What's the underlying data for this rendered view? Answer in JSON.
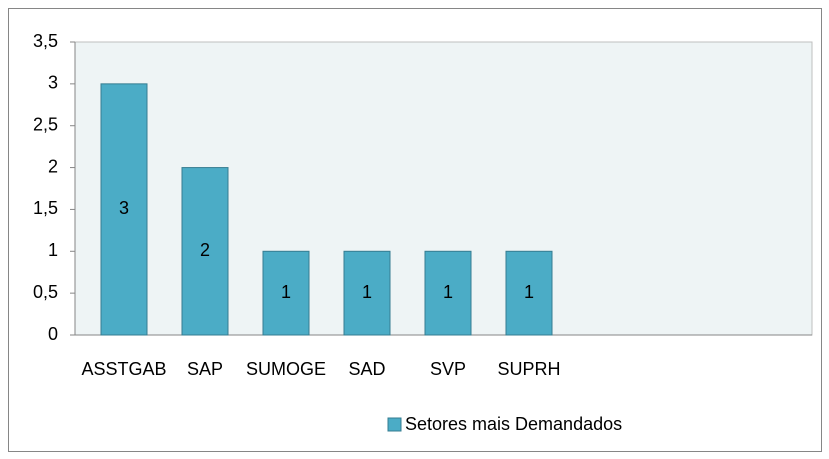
{
  "chart_data": {
    "type": "bar",
    "categories": [
      "ASSTGAB",
      "SAP",
      "SUMOGE",
      "SAD",
      "SVP",
      "SUPRH",
      null,
      null,
      null
    ],
    "series": [
      {
        "name": "Setores mais Demandados",
        "color": "#4bacc6",
        "values": [
          3,
          2,
          1,
          1,
          1,
          1,
          null,
          null,
          null
        ]
      }
    ],
    "ylim": [
      0,
      3.5
    ],
    "yticks": [
      0,
      {
        "value": 0.5,
        "label": "0,5"
      },
      1,
      {
        "value": 1.5,
        "label": "1,5"
      },
      2,
      {
        "value": 2.5,
        "label": "2,5"
      },
      3,
      {
        "value": 3.5,
        "label": "3,5"
      }
    ],
    "legend": "bottom"
  }
}
